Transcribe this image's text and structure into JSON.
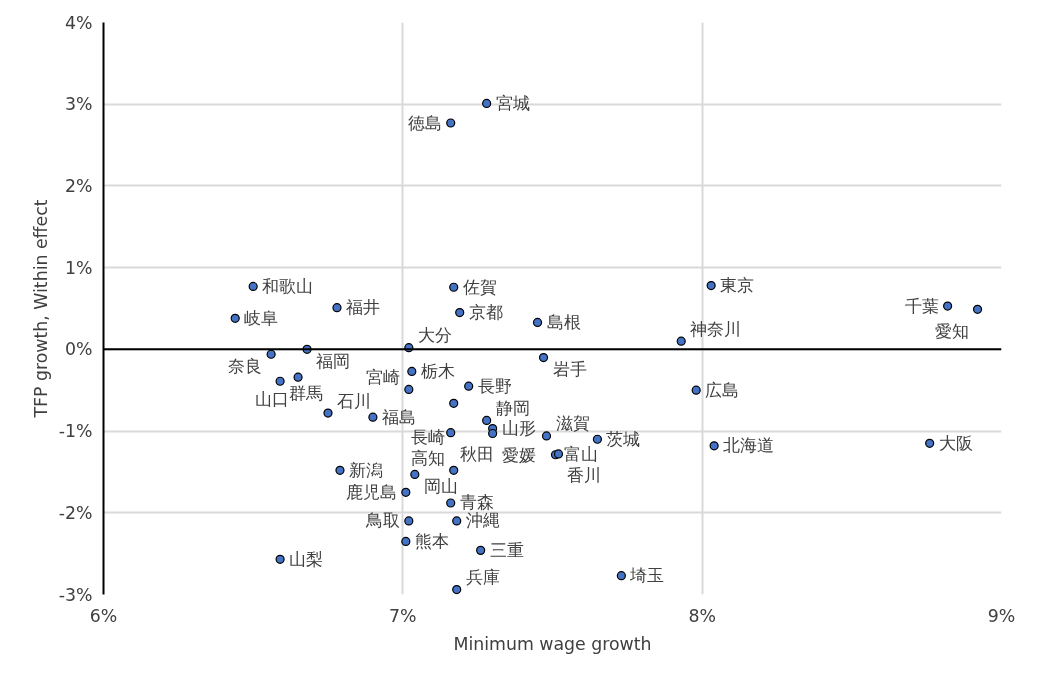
{
  "chart_data": {
    "type": "scatter",
    "xlabel": "Minimum wage growth",
    "ylabel": "TFP growth, Within effect",
    "x": [
      6.5,
      6.78,
      6.44,
      6.56,
      6.68,
      7.02,
      6.59,
      6.65,
      6.75,
      6.9,
      7.03,
      7.02,
      7.22,
      7.17,
      7.28,
      7.16,
      7.3,
      7.3,
      7.48,
      7.65,
      7.51,
      7.52,
      7.47,
      6.79,
      7.04,
      7.17,
      7.01,
      7.16,
      7.02,
      7.18,
      7.01,
      7.26,
      7.18,
      6.59,
      7.73,
      7.28,
      7.16,
      7.17,
      7.19,
      7.45,
      8.03,
      8.82,
      8.92,
      7.93,
      7.98,
      8.04,
      8.76
    ],
    "series": [
      {
        "color": "#4472c4",
        "values": [
          0.77,
          0.51,
          0.38,
          -0.06,
          0.0,
          0.02,
          -0.39,
          -0.34,
          -0.78,
          -0.83,
          -0.27,
          -0.49,
          -0.45,
          -0.66,
          -0.87,
          -1.02,
          -0.97,
          -1.03,
          -1.06,
          -1.1,
          -1.29,
          -1.28,
          -0.1,
          -1.48,
          -1.53,
          -1.48,
          -1.75,
          -1.88,
          -2.1,
          -2.1,
          -2.35,
          -2.46,
          -2.94,
          -2.57,
          -2.77,
          3.01,
          2.77,
          0.76,
          0.45,
          0.33,
          0.78,
          0.53,
          0.49,
          0.1,
          -0.5,
          -1.18,
          -1.15
        ],
        "value_labels": [
          "和歌山",
          "福井",
          "岐阜",
          "奈良",
          "福岡",
          "大分",
          "群馬",
          "山口",
          "石川",
          "福島",
          "栃木",
          "宮崎",
          "長野",
          "長崎",
          "静岡",
          "秋田",
          "山形",
          "愛媛",
          "滋賀",
          "茨城",
          "富山",
          "香川",
          "岩手",
          "新潟",
          "岡山",
          "高知",
          "鹿児島",
          "青森",
          "鳥取",
          "沖縄",
          "熊本",
          "三重",
          "兵庫",
          "山梨",
          "埼玉",
          "宮城",
          "徳島",
          "佐賀",
          "京都",
          "島根",
          "東京",
          "千葉",
          "愛知",
          "神奈川",
          "広島",
          "北海道",
          "大阪"
        ]
      }
    ],
    "xlim": [
      6,
      9
    ],
    "xticks": [
      {
        "value": 6,
        "label": "6%"
      },
      {
        "value": 7,
        "label": "7%"
      },
      {
        "value": 8,
        "label": "8%"
      },
      {
        "value": 9,
        "label": "9%"
      }
    ],
    "ylim": [
      -3,
      4
    ],
    "yticks": [
      {
        "value": -3,
        "label": "-3%"
      },
      {
        "value": -2,
        "label": "-2%"
      },
      {
        "value": -1,
        "label": "-1%"
      },
      {
        "value": 0,
        "label": "0%"
      },
      {
        "value": 1,
        "label": "1%"
      },
      {
        "value": 2,
        "label": "2%"
      },
      {
        "value": 3,
        "label": "3%"
      },
      {
        "value": 4,
        "label": "4%"
      }
    ],
    "ref_lines": [
      {
        "axis": "y",
        "value": 0,
        "color": "#000000"
      }
    ],
    "grid": true,
    "marker": "circle"
  }
}
